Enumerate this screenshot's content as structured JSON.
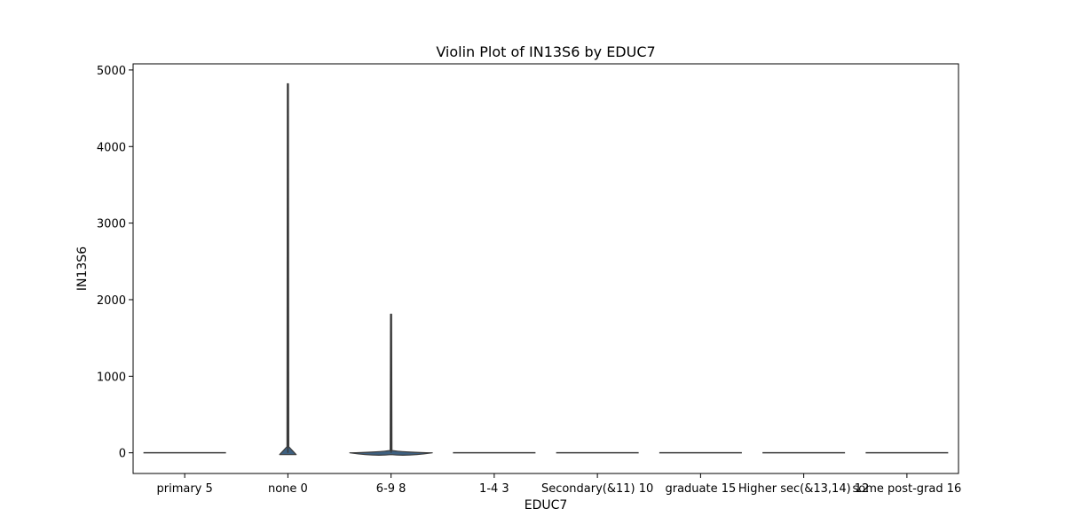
{
  "chart_data": {
    "type": "violin",
    "title": "Violin Plot of IN13S6 by EDUC7",
    "xlabel": "EDUC7",
    "ylabel": "IN13S6",
    "ylim": [
      -270,
      5080
    ],
    "yticks": [
      0,
      1000,
      2000,
      3000,
      4000,
      5000
    ],
    "grid": false,
    "categories": [
      "primary 5",
      "none 0",
      "6-9 8",
      "1-4 3",
      "Secondary(&11) 10",
      "graduate 15",
      "Higher sec(&13,14) 12",
      "some post-grad 16"
    ],
    "violins": [
      {
        "category": "primary 5",
        "min": 0,
        "max": 0,
        "bulk_max": 0,
        "bulk_width": 0
      },
      {
        "category": "none 0",
        "min": 0,
        "max": 4820,
        "bulk_max": 80,
        "bulk_width": 0.16
      },
      {
        "category": "6-9 8",
        "min": 0,
        "max": 1810,
        "bulk_max": 30,
        "bulk_width": 0.8
      },
      {
        "category": "1-4 3",
        "min": 0,
        "max": 0,
        "bulk_max": 0,
        "bulk_width": 0
      },
      {
        "category": "Secondary(&11) 10",
        "min": 0,
        "max": 0,
        "bulk_max": 0,
        "bulk_width": 0
      },
      {
        "category": "graduate 15",
        "min": 0,
        "max": 0,
        "bulk_max": 0,
        "bulk_width": 0
      },
      {
        "category": "Higher sec(&13,14) 12",
        "min": 0,
        "max": 0,
        "bulk_max": 0,
        "bulk_width": 0
      },
      {
        "category": "some post-grad 16",
        "min": 0,
        "max": 0,
        "bulk_max": 0,
        "bulk_width": 0
      }
    ],
    "colors": {
      "violin_fill": "#3e6080",
      "violin_edge": "#3a3a3a",
      "axis": "#000000"
    }
  }
}
